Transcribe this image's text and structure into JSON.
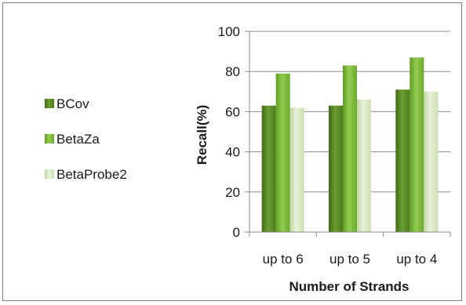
{
  "chart_data": {
    "type": "bar",
    "title": "",
    "xlabel": "Number of Strands",
    "ylabel": "Recall(%)",
    "ylim": [
      0,
      100
    ],
    "yticks": [
      0,
      20,
      40,
      60,
      80,
      100
    ],
    "categories": [
      "up to 6",
      "up to 5",
      "up to 4"
    ],
    "series": [
      {
        "name": "BCov",
        "values": [
          63,
          63,
          71
        ],
        "color": "#5a8c24"
      },
      {
        "name": "BetaZa",
        "values": [
          79,
          83,
          87
        ],
        "color": "#7dba3a"
      },
      {
        "name": "BetaProbe2",
        "values": [
          62,
          66,
          70
        ],
        "color": "#d6e6bd"
      }
    ],
    "grid": true,
    "legend_position": "left"
  }
}
